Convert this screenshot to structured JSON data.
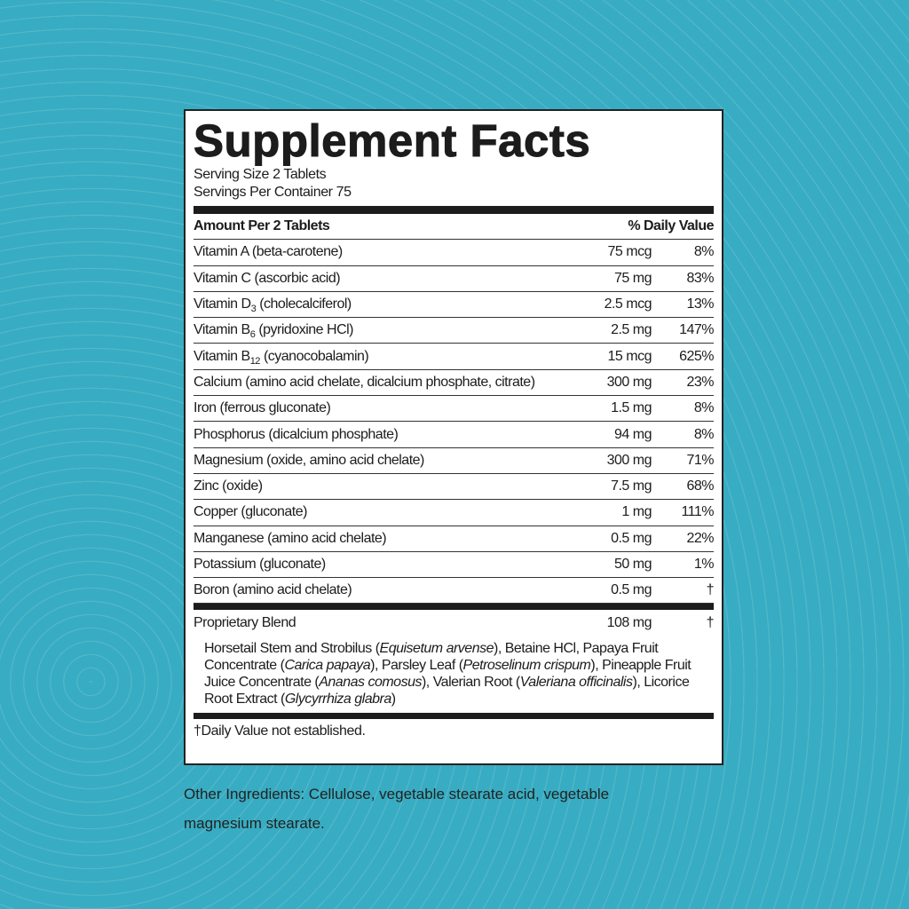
{
  "title": "Supplement Facts",
  "serving_size": "Serving Size 2 Tablets",
  "servings_per_container": "Servings Per Container 75",
  "header": {
    "amount": "Amount Per 2 Tablets",
    "dv": "% Daily Value"
  },
  "rows": [
    {
      "name": "Vitamin A (beta-carotene)",
      "amount": "75 mcg",
      "dv": "8%"
    },
    {
      "name": "Vitamin C (ascorbic acid)",
      "amount": "75 mg",
      "dv": "83%"
    },
    {
      "name": "Vitamin D",
      "sub": "3",
      "detail": "(cholecalciferol)",
      "amount": "2.5 mcg",
      "dv": "13%"
    },
    {
      "name": "Vitamin B",
      "sub": "6",
      "detail": "(pyridoxine HCl)",
      "amount": "2.5 mg",
      "dv": "147%"
    },
    {
      "name": "Vitamin B",
      "sub": "12",
      "detail": "(cyanocobalamin)",
      "amount": "15 mcg",
      "dv": "625%"
    },
    {
      "name": "Calcium (amino acid chelate, dicalcium phosphate, citrate)",
      "amount": "300 mg",
      "dv": "23%"
    },
    {
      "name": "Iron (ferrous gluconate)",
      "amount": "1.5 mg",
      "dv": "8%"
    },
    {
      "name": "Phosphorus (dicalcium phosphate)",
      "amount": "94 mg",
      "dv": "8%"
    },
    {
      "name": "Magnesium (oxide, amino acid chelate)",
      "amount": "300 mg",
      "dv": "71%"
    },
    {
      "name": "Zinc (oxide)",
      "amount": "7.5 mg",
      "dv": "68%"
    },
    {
      "name": "Copper (gluconate)",
      "amount": "1 mg",
      "dv": "111%"
    },
    {
      "name": "Manganese (amino acid chelate)",
      "amount": "0.5 mg",
      "dv": "22%"
    },
    {
      "name": "Potassium (gluconate)",
      "amount": "50 mg",
      "dv": "1%"
    },
    {
      "name": "Boron (amino acid chelate)",
      "amount": "0.5 mg",
      "dv": "†"
    }
  ],
  "blend": {
    "name": "Proprietary Blend",
    "amount": "108 mg",
    "dv": "†",
    "segments": [
      {
        "text": "Horsetail Stem and Strobilus ("
      },
      {
        "text": "Equisetum arvense",
        "italic": true
      },
      {
        "text": "), Betaine HCl, Papaya Fruit Concentrate ("
      },
      {
        "text": "Carica papaya",
        "italic": true
      },
      {
        "text": "), Parsley Leaf ("
      },
      {
        "text": "Petroselinum crispum",
        "italic": true
      },
      {
        "text": "), Pineapple Fruit Juice Concentrate ("
      },
      {
        "text": "Ananas comosus",
        "italic": true
      },
      {
        "text": "), Valerian Root ("
      },
      {
        "text": "Valeriana officinalis",
        "italic": true
      },
      {
        "text": "), Licorice Root Extract ("
      },
      {
        "text": "Glycyrrhiza glabra",
        "italic": true
      },
      {
        "text": ")"
      }
    ]
  },
  "footnote": "†Daily Value not established.",
  "other_ingredients": "Other Ingredients: Cellulose, vegetable stearate acid, vegetable magnesium stearate."
}
